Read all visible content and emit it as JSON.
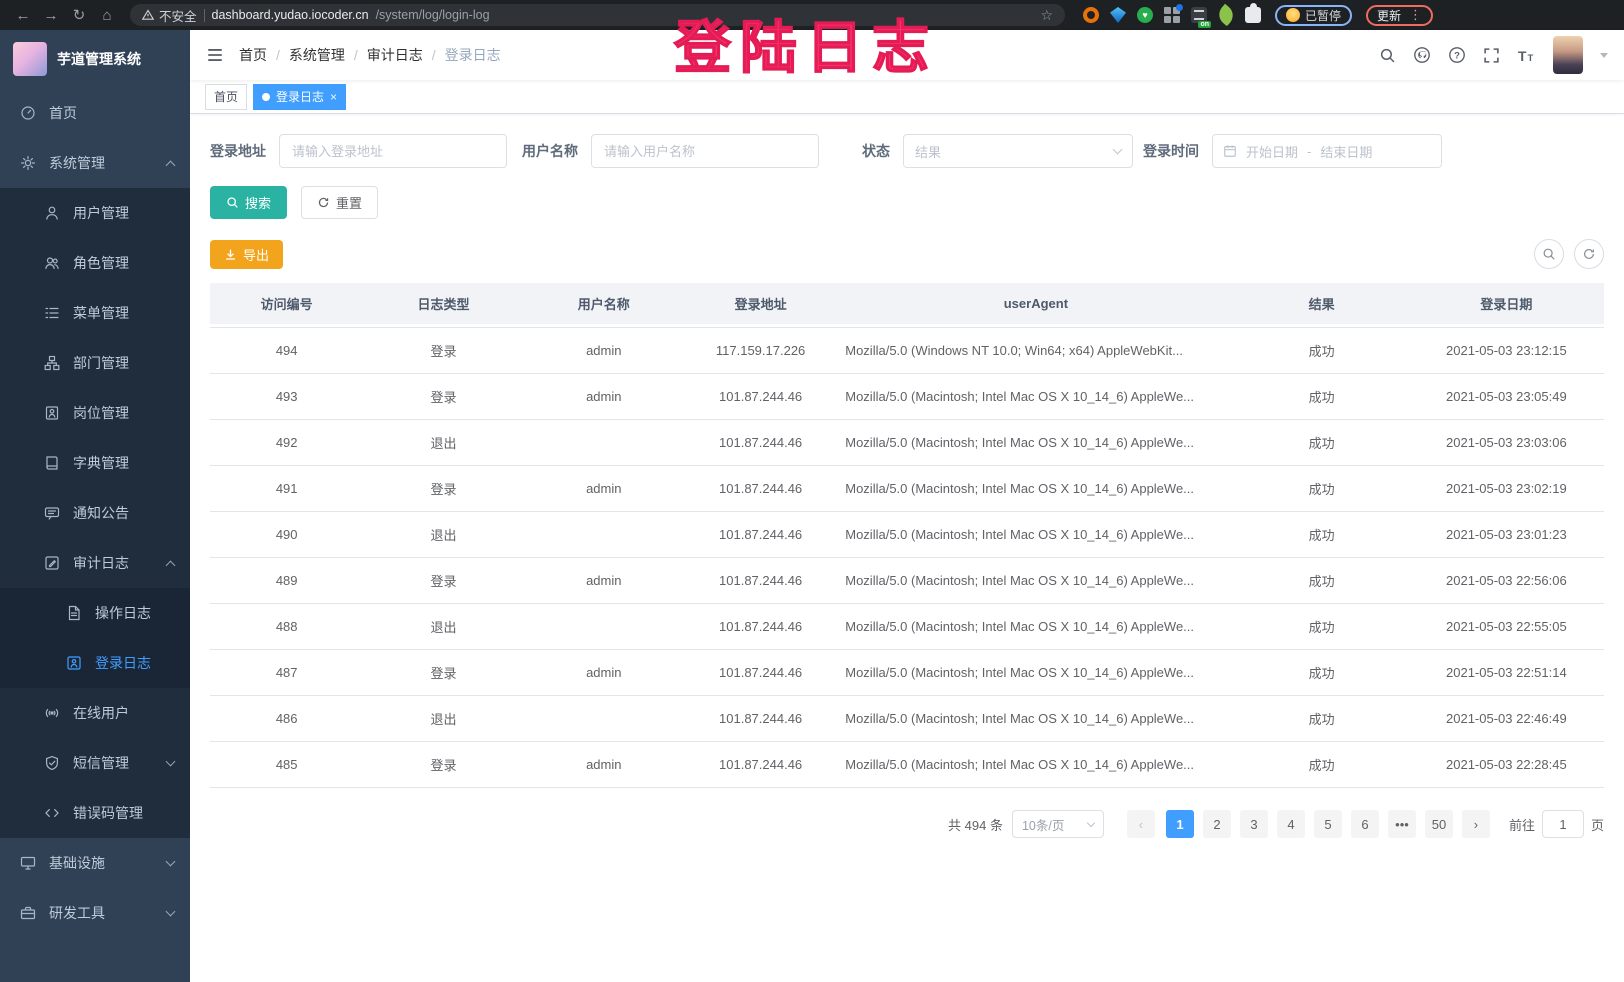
{
  "browser": {
    "security_label": "不安全",
    "url_host": "dashboard.yudao.iocoder.cn",
    "url_path": "/system/log/login-log",
    "paused_label": "已暂停",
    "update_label": "更新"
  },
  "overlay": {
    "text": "登陆日志",
    "color": "#f9346d"
  },
  "sidebar": {
    "title": "芋道管理系统",
    "items": [
      {
        "name": "home",
        "label": "首页",
        "icon": "dashboard-icon",
        "level": 0
      },
      {
        "name": "system-management",
        "label": "系统管理",
        "icon": "gear-icon",
        "level": 0,
        "chevron": "up"
      },
      {
        "name": "user-management",
        "label": "用户管理",
        "icon": "user-icon",
        "level": 1
      },
      {
        "name": "role-management",
        "label": "角色管理",
        "icon": "users-icon",
        "level": 1
      },
      {
        "name": "menu-management",
        "label": "菜单管理",
        "icon": "menu-icon",
        "level": 1
      },
      {
        "name": "dept-management",
        "label": "部门管理",
        "icon": "tree-icon",
        "level": 1
      },
      {
        "name": "post-management",
        "label": "岗位管理",
        "icon": "badge-icon",
        "level": 1
      },
      {
        "name": "dict-management",
        "label": "字典管理",
        "icon": "dict-icon",
        "level": 1
      },
      {
        "name": "notice",
        "label": "通知公告",
        "icon": "message-icon",
        "level": 1
      },
      {
        "name": "audit-log",
        "label": "审计日志",
        "icon": "audit-icon",
        "level": 1,
        "chevron": "up"
      },
      {
        "name": "operation-log",
        "label": "操作日志",
        "icon": "doc-icon",
        "level": 2
      },
      {
        "name": "login-log",
        "label": "登录日志",
        "icon": "login-log-icon",
        "level": 2,
        "active": true
      },
      {
        "name": "online-users",
        "label": "在线用户",
        "icon": "online-icon",
        "level": 1
      },
      {
        "name": "sms-management",
        "label": "短信管理",
        "icon": "shield-icon",
        "level": 1,
        "chevron": "down"
      },
      {
        "name": "error-code-management",
        "label": "错误码管理",
        "icon": "code-icon",
        "level": 1
      },
      {
        "name": "infrastructure",
        "label": "基础设施",
        "icon": "monitor-icon",
        "level": 0,
        "chevron": "down"
      },
      {
        "name": "dev-tools",
        "label": "研发工具",
        "icon": "toolbox-icon",
        "level": 0,
        "chevron": "down"
      }
    ]
  },
  "breadcrumb": [
    "首页",
    "系统管理",
    "审计日志",
    "登录日志"
  ],
  "tags": [
    {
      "label": "首页",
      "active": false
    },
    {
      "label": "登录日志",
      "active": true
    }
  ],
  "filters": {
    "login_address": {
      "label": "登录地址",
      "placeholder": "请输入登录地址"
    },
    "username": {
      "label": "用户名称",
      "placeholder": "请输入用户名称"
    },
    "status": {
      "label": "状态",
      "placeholder": "结果"
    },
    "login_time": {
      "label": "登录时间",
      "start_placeholder": "开始日期",
      "separator": "-",
      "end_placeholder": "结束日期"
    },
    "search_label": "搜索",
    "reset_label": "重置"
  },
  "toolbar": {
    "export_label": "导出"
  },
  "table": {
    "columns": [
      "访问编号",
      "日志类型",
      "用户名称",
      "登录地址",
      "userAgent",
      "结果",
      "登录日期"
    ],
    "rows": [
      [
        "494",
        "登录",
        "admin",
        "117.159.17.226",
        "Mozilla/5.0 (Windows NT 10.0; Win64; x64) AppleWebKit...",
        "成功",
        "2021-05-03 23:12:15"
      ],
      [
        "493",
        "登录",
        "admin",
        "101.87.244.46",
        "Mozilla/5.0 (Macintosh; Intel Mac OS X 10_14_6) AppleWe...",
        "成功",
        "2021-05-03 23:05:49"
      ],
      [
        "492",
        "退出",
        "",
        "101.87.244.46",
        "Mozilla/5.0 (Macintosh; Intel Mac OS X 10_14_6) AppleWe...",
        "成功",
        "2021-05-03 23:03:06"
      ],
      [
        "491",
        "登录",
        "admin",
        "101.87.244.46",
        "Mozilla/5.0 (Macintosh; Intel Mac OS X 10_14_6) AppleWe...",
        "成功",
        "2021-05-03 23:02:19"
      ],
      [
        "490",
        "退出",
        "",
        "101.87.244.46",
        "Mozilla/5.0 (Macintosh; Intel Mac OS X 10_14_6) AppleWe...",
        "成功",
        "2021-05-03 23:01:23"
      ],
      [
        "489",
        "登录",
        "admin",
        "101.87.244.46",
        "Mozilla/5.0 (Macintosh; Intel Mac OS X 10_14_6) AppleWe...",
        "成功",
        "2021-05-03 22:56:06"
      ],
      [
        "488",
        "退出",
        "",
        "101.87.244.46",
        "Mozilla/5.0 (Macintosh; Intel Mac OS X 10_14_6) AppleWe...",
        "成功",
        "2021-05-03 22:55:05"
      ],
      [
        "487",
        "登录",
        "admin",
        "101.87.244.46",
        "Mozilla/5.0 (Macintosh; Intel Mac OS X 10_14_6) AppleWe...",
        "成功",
        "2021-05-03 22:51:14"
      ],
      [
        "486",
        "退出",
        "",
        "101.87.244.46",
        "Mozilla/5.0 (Macintosh; Intel Mac OS X 10_14_6) AppleWe...",
        "成功",
        "2021-05-03 22:46:49"
      ],
      [
        "485",
        "登录",
        "admin",
        "101.87.244.46",
        "Mozilla/5.0 (Macintosh; Intel Mac OS X 10_14_6) AppleWe...",
        "成功",
        "2021-05-03 22:28:45"
      ]
    ]
  },
  "pagination": {
    "total_text": "共 494 条",
    "page_size": "10条/页",
    "pages": [
      "1",
      "2",
      "3",
      "4",
      "5",
      "6",
      "•••",
      "50"
    ],
    "active_page": "1",
    "prev": "‹",
    "next": "›",
    "goto_label": "前往",
    "goto_value": "1",
    "goto_suffix": "页"
  },
  "colors": {
    "accent": "#409eff",
    "search_button": "#2ab3a3",
    "export_button": "#f2a41c",
    "sidebar": "#304156",
    "annotation": "#f9346d"
  }
}
